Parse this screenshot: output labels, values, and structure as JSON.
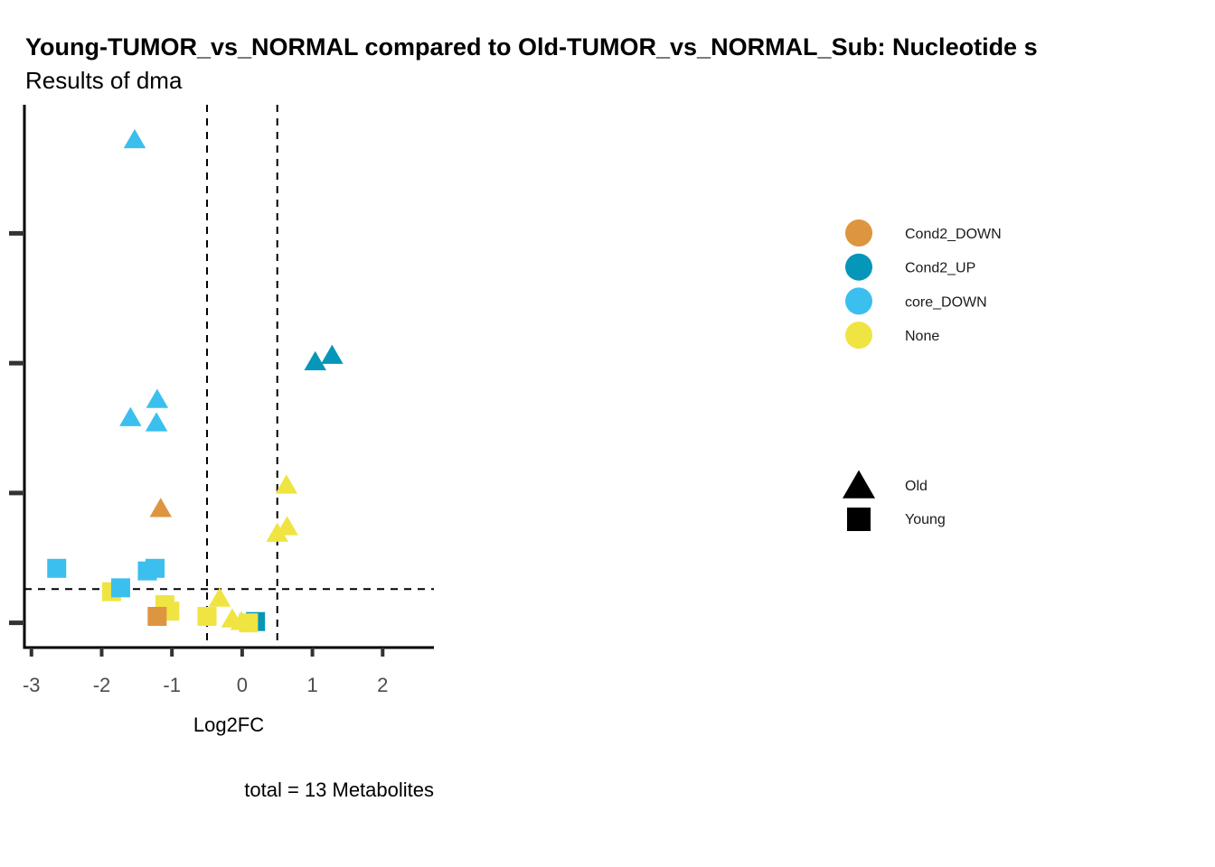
{
  "chart_data": {
    "type": "scatter",
    "title": "Young-TUMOR_vs_NORMAL compared to Old-TUMOR_vs_NORMAL_Sub: Nucleotide s",
    "subtitle": "Results of dma",
    "xlabel": "Log2FC",
    "ylabel": "",
    "caption": "total = 13 Metabolites",
    "xlim": [
      -3.1,
      2.73
    ],
    "ylim": [
      -0.19,
      3.99
    ],
    "x_ticks": [
      -3,
      -2,
      -1,
      0,
      1,
      2
    ],
    "x_tick_labels": [
      "-3",
      "-2",
      "-1",
      "0",
      "1",
      "2"
    ],
    "y_ticks": [
      0,
      1,
      2,
      3
    ],
    "y_tick_labels": [
      "",
      "",
      "",
      ""
    ],
    "grid": false,
    "vlines": [
      -0.5,
      0.5
    ],
    "hline": 0.26,
    "color_legend": {
      "placement": "right",
      "entries": [
        {
          "label": "Cond2_DOWN",
          "color": "#DD953F"
        },
        {
          "label": "Cond2_UP",
          "color": "#0596B9"
        },
        {
          "label": "core_DOWN",
          "color": "#3BBFEF"
        },
        {
          "label": "None",
          "color": "#F0E442"
        }
      ]
    },
    "shape_legend": {
      "placement": "right",
      "entries": [
        {
          "label": "Old",
          "shape": "triangle"
        },
        {
          "label": "Young",
          "shape": "square"
        }
      ]
    },
    "points": [
      {
        "x": -1.53,
        "y": 3.72,
        "group": "core_DOWN",
        "shape": "Old"
      },
      {
        "x": 1.04,
        "y": 2.01,
        "group": "Cond2_UP",
        "shape": "Old"
      },
      {
        "x": 1.28,
        "y": 2.06,
        "group": "Cond2_UP",
        "shape": "Old"
      },
      {
        "x": -1.21,
        "y": 1.72,
        "group": "core_DOWN",
        "shape": "Old"
      },
      {
        "x": -1.59,
        "y": 1.58,
        "group": "core_DOWN",
        "shape": "Old"
      },
      {
        "x": -1.22,
        "y": 1.54,
        "group": "core_DOWN",
        "shape": "Old"
      },
      {
        "x": -1.16,
        "y": 0.88,
        "group": "Cond2_DOWN",
        "shape": "Old"
      },
      {
        "x": 0.63,
        "y": 1.06,
        "group": "None",
        "shape": "Old"
      },
      {
        "x": 0.64,
        "y": 0.74,
        "group": "None",
        "shape": "Old"
      },
      {
        "x": 0.5,
        "y": 0.69,
        "group": "None",
        "shape": "Old"
      },
      {
        "x": -0.32,
        "y": 0.19,
        "group": "None",
        "shape": "Old"
      },
      {
        "x": -0.14,
        "y": 0.03,
        "group": "None",
        "shape": "Old"
      },
      {
        "x": -0.01,
        "y": 0.01,
        "group": "None",
        "shape": "Old"
      },
      {
        "x": -1.86,
        "y": 0.24,
        "group": "None",
        "shape": "Young"
      },
      {
        "x": -1.1,
        "y": 0.14,
        "group": "None",
        "shape": "Young"
      },
      {
        "x": -1.03,
        "y": 0.09,
        "group": "None",
        "shape": "Young"
      },
      {
        "x": -0.5,
        "y": 0.05,
        "group": "None",
        "shape": "Young"
      },
      {
        "x": 0.19,
        "y": 0.01,
        "group": "Cond2_UP",
        "shape": "Young"
      },
      {
        "x": 0.09,
        "y": 0.0,
        "group": "None",
        "shape": "Young"
      },
      {
        "x": -1.21,
        "y": 0.05,
        "group": "Cond2_DOWN",
        "shape": "Young"
      },
      {
        "x": -2.64,
        "y": 0.42,
        "group": "core_DOWN",
        "shape": "Young"
      },
      {
        "x": -1.35,
        "y": 0.4,
        "group": "core_DOWN",
        "shape": "Young"
      },
      {
        "x": -1.24,
        "y": 0.42,
        "group": "core_DOWN",
        "shape": "Young"
      },
      {
        "x": -1.73,
        "y": 0.27,
        "group": "core_DOWN",
        "shape": "Young"
      }
    ]
  }
}
